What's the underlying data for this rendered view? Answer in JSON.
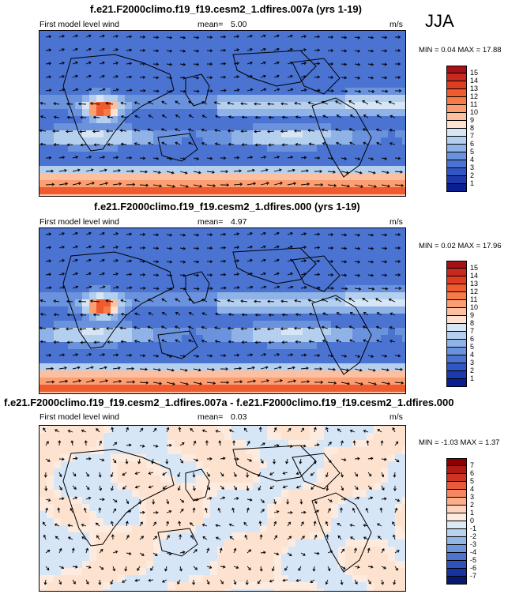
{
  "season": "JJA",
  "panels": [
    {
      "title": "f.e21.F2000climo.f19_f19.cesm2_1.dfires.007a (yrs 1-19)",
      "subtitle_left": "First model level wind",
      "mean_label": "mean=",
      "mean_value": "5.00",
      "units": "m/s",
      "min_label": "MIN =",
      "min_value": "0.04",
      "max_label": "MAX =",
      "max_value": "17.88"
    },
    {
      "title": "f.e21.F2000climo.f19_f19.cesm2_1.dfires.000 (yrs 1-19)",
      "subtitle_left": "First model level wind",
      "mean_label": "mean=",
      "mean_value": "4.97",
      "units": "m/s",
      "min_label": "MIN =",
      "min_value": "0.02",
      "max_label": "MAX =",
      "max_value": "17.96"
    },
    {
      "title": "f.e21.F2000climo.f19_f19.cesm2_1.dfires.007a - f.e21.F2000climo.f19_f19.cesm2_1.dfires.000",
      "subtitle_left": "First model level wind",
      "mean_label": "mean=",
      "mean_value": "0.03",
      "units": "m/s",
      "min_label": "MIN =",
      "min_value": "-1.03",
      "max_label": "MAX =",
      "max_value": "1.37"
    }
  ],
  "chart_data": [
    {
      "type": "heatmap",
      "title": "f.e21.F2000climo.f19_f19.cesm2_1.dfires.007a (yrs 1-19)",
      "variable": "First model level wind",
      "units": "m/s",
      "mean": 5.0,
      "min": 0.04,
      "max": 17.88,
      "colorbar_levels": [
        "15",
        "14",
        "13",
        "12",
        "11",
        "10",
        "9",
        "8",
        "7",
        "6",
        "5",
        "4",
        "3",
        "2",
        "1"
      ],
      "colorbar_colors": [
        "#a50f15",
        "#c8281e",
        "#e03c22",
        "#ef5a2e",
        "#f77b46",
        "#fb9e72",
        "#fcbfa0",
        "#fde2cf",
        "#d7e6f6",
        "#b5d0ef",
        "#8fb3e6",
        "#6a92dd",
        "#4a73d2",
        "#3056c4",
        "#1c3aac",
        "#0a1f8f"
      ],
      "overlay": "wind vectors"
    },
    {
      "type": "heatmap",
      "title": "f.e21.F2000climo.f19_f19.cesm2_1.dfires.000 (yrs 1-19)",
      "variable": "First model level wind",
      "units": "m/s",
      "mean": 4.97,
      "min": 0.02,
      "max": 17.96,
      "colorbar_levels": [
        "15",
        "14",
        "13",
        "12",
        "11",
        "10",
        "9",
        "8",
        "7",
        "6",
        "5",
        "4",
        "3",
        "2",
        "1"
      ],
      "colorbar_colors": [
        "#a50f15",
        "#c8281e",
        "#e03c22",
        "#ef5a2e",
        "#f77b46",
        "#fb9e72",
        "#fcbfa0",
        "#fde2cf",
        "#d7e6f6",
        "#b5d0ef",
        "#8fb3e6",
        "#6a92dd",
        "#4a73d2",
        "#3056c4",
        "#1c3aac",
        "#0a1f8f"
      ],
      "overlay": "wind vectors"
    },
    {
      "type": "heatmap",
      "title": "f.e21.F2000climo.f19_f19.cesm2_1.dfires.007a - f.e21.F2000climo.f19_f19.cesm2_1.dfires.000",
      "variable": "First model level wind",
      "units": "m/s",
      "mean": 0.03,
      "min": -1.03,
      "max": 1.37,
      "colorbar_levels": [
        "7",
        "6",
        "5",
        "4",
        "3",
        "2",
        "1",
        "0",
        "-1",
        "-2",
        "-3",
        "-4",
        "-5",
        "-6",
        "-7"
      ],
      "colorbar_colors": [
        "#8b0000",
        "#b01a12",
        "#cf3322",
        "#e85a3a",
        "#f5865f",
        "#fbad8c",
        "#fdd3bd",
        "#fdebdf",
        "#dce9f7",
        "#b9d2ef",
        "#94b6e6",
        "#6f95dc",
        "#4d74cf",
        "#2f52bd",
        "#17339f",
        "#08186f"
      ],
      "overlay": "wind vectors"
    }
  ]
}
